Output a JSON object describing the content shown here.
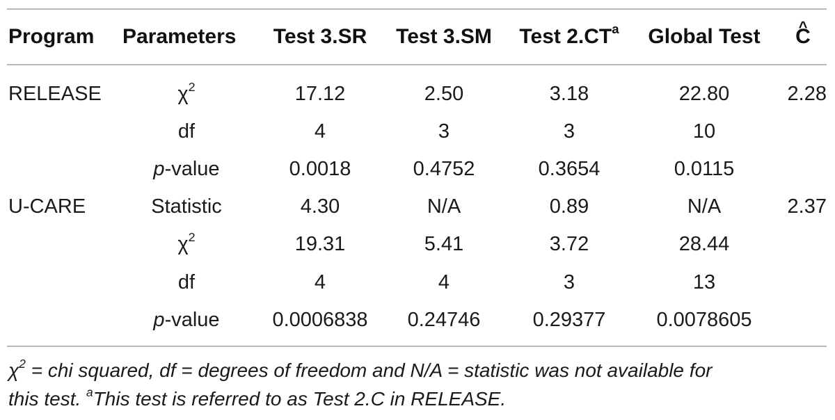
{
  "table": {
    "headers": {
      "program": "Program",
      "parameters": "Parameters",
      "test3sr": "Test 3.SR",
      "test3sm": "Test 3.SM",
      "test2ct": "Test 2.CT",
      "test2ct_sup": "a",
      "global": "Global Test",
      "chat": "C"
    },
    "rows": [
      {
        "program": "RELEASE",
        "param": "χ",
        "param_sup": "2",
        "t3sr": "17.12",
        "t3sm": "2.50",
        "t2ct": "3.18",
        "global": "22.80",
        "chat": "2.28"
      },
      {
        "program": "",
        "param": "df",
        "param_sup": "",
        "t3sr": "4",
        "t3sm": "3",
        "t2ct": "3",
        "global": "10",
        "chat": ""
      },
      {
        "program": "",
        "param_italic": "p",
        "param": "-value",
        "param_sup": "",
        "t3sr": "0.0018",
        "t3sm": "0.4752",
        "t2ct": "0.3654",
        "global": "0.0115",
        "chat": ""
      },
      {
        "program": "U-CARE",
        "param": "Statistic",
        "param_sup": "",
        "t3sr": "4.30",
        "t3sm": "N/A",
        "t2ct": "0.89",
        "global": "N/A",
        "chat": "2.37"
      },
      {
        "program": "",
        "param": "χ",
        "param_sup": "2",
        "t3sr": "19.31",
        "t3sm": "5.41",
        "t2ct": "3.72",
        "global": "28.44",
        "chat": ""
      },
      {
        "program": "",
        "param": "df",
        "param_sup": "",
        "t3sr": "4",
        "t3sm": "4",
        "t2ct": "3",
        "global": "13",
        "chat": ""
      },
      {
        "program": "",
        "param_italic": "p",
        "param": "-value",
        "param_sup": "",
        "t3sr": "0.0006838",
        "t3sm": "0.24746",
        "t2ct": "0.29377",
        "global": "0.0078605",
        "chat": ""
      }
    ]
  },
  "footnote": {
    "chi": "χ",
    "chi_sup": "2",
    "line1_rest": " = chi squared, df = degrees of freedom and N/A = statistic was not available for",
    "line2_pre": "this test. ",
    "line2_sup": "a",
    "line2_rest": "This test is referred to as Test 2.C in RELEASE."
  }
}
